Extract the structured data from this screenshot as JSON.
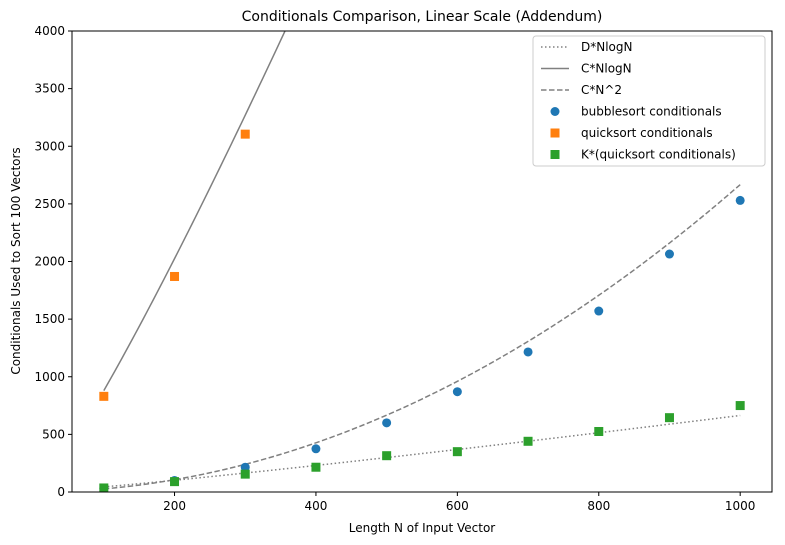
{
  "chart_data": {
    "type": "scatter",
    "title": "Conditionals Comparison, Linear Scale (Addendum)",
    "xlabel": "Length N of Input Vector",
    "ylabel": "Conditionals Used to Sort 100 Vectors",
    "xlim": [
      55,
      1045
    ],
    "ylim": [
      0,
      4000
    ],
    "xticks": [
      200,
      400,
      600,
      800,
      1000
    ],
    "yticks": [
      0,
      500,
      1000,
      1500,
      2000,
      2500,
      3000,
      3500,
      4000
    ],
    "grid": false,
    "legend_position": "top-right",
    "series": [
      {
        "name": "D*NlogN",
        "kind": "line",
        "style": "dotted",
        "color": "#808080",
        "x": [
          100,
          200,
          300,
          400,
          500,
          600,
          700,
          800,
          900,
          1000
        ],
        "y": [
          29,
          66,
          107,
          150,
          195,
          240,
          287,
          335,
          383,
          664
        ]
      },
      {
        "name": "C*NlogN",
        "kind": "line",
        "style": "solid",
        "color": "#808080",
        "x": [
          100,
          200,
          300,
          357
        ],
        "y": [
          880,
          2080,
          3330,
          4000
        ]
      },
      {
        "name": "C*N^2",
        "kind": "line",
        "style": "dashed",
        "color": "#808080",
        "x": [
          100,
          200,
          300,
          400,
          500,
          600,
          700,
          800,
          900,
          1000
        ],
        "y": [
          27,
          107,
          240,
          427,
          667,
          960,
          1307,
          1707,
          2160,
          2667
        ]
      },
      {
        "name": "bubblesort conditionals",
        "kind": "scatter",
        "marker": "circle",
        "color": "#1f77b4",
        "x": [
          100,
          200,
          300,
          400,
          500,
          600,
          700,
          800,
          900,
          1000
        ],
        "y": [
          30,
          100,
          215,
          375,
          600,
          870,
          1215,
          1570,
          2065,
          2530
        ]
      },
      {
        "name": "quicksort conditionals",
        "kind": "scatter",
        "marker": "square",
        "color": "#ff7f0e",
        "x": [
          100,
          200,
          300
        ],
        "y": [
          830,
          1870,
          3105
        ]
      },
      {
        "name": "K*(quicksort conditionals)",
        "kind": "scatter",
        "marker": "square",
        "color": "#2ca02c",
        "x": [
          100,
          200,
          300,
          400,
          500,
          600,
          700,
          800,
          900,
          1000
        ],
        "y": [
          35,
          90,
          155,
          215,
          315,
          350,
          440,
          525,
          645,
          750
        ]
      }
    ]
  }
}
